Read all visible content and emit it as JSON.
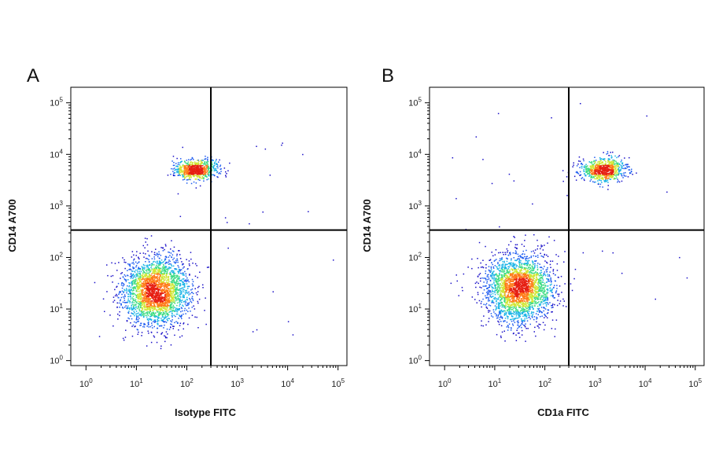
{
  "chart_data": [
    {
      "type": "scatter",
      "panel_label": "A",
      "xlabel": "Isotype FITC",
      "ylabel": "CD14 A700",
      "x_scale": "log",
      "y_scale": "log",
      "xlim": [
        0.5,
        150000
      ],
      "ylim": [
        0.8,
        200000
      ],
      "x_ticks": [
        {
          "base": "10",
          "exp": "0",
          "value": 1
        },
        {
          "base": "10",
          "exp": "1",
          "value": 10
        },
        {
          "base": "10",
          "exp": "2",
          "value": 100
        },
        {
          "base": "10",
          "exp": "3",
          "value": 1000
        },
        {
          "base": "10",
          "exp": "4",
          "value": 10000
        },
        {
          "base": "10",
          "exp": "5",
          "value": 100000
        }
      ],
      "y_ticks": [
        {
          "base": "10",
          "exp": "0",
          "value": 1
        },
        {
          "base": "10",
          "exp": "1",
          "value": 10
        },
        {
          "base": "10",
          "exp": "2",
          "value": 100
        },
        {
          "base": "10",
          "exp": "3",
          "value": 1000
        },
        {
          "base": "10",
          "exp": "4",
          "value": 10000
        },
        {
          "base": "10",
          "exp": "5",
          "value": 100000
        }
      ],
      "quadrant_gates": {
        "x": 300,
        "y": 340
      },
      "populations": [
        {
          "center": [
            25,
            22
          ],
          "spread": [
            0.33,
            0.33
          ],
          "weight": 0.78
        },
        {
          "center": [
            150,
            5000
          ],
          "spread": [
            0.22,
            0.09
          ],
          "weight": 0.22
        }
      ],
      "color_scale": [
        "#1a10c8",
        "#1e5cf0",
        "#19b4e6",
        "#3cdc82",
        "#cfe632",
        "#ff7a18",
        "#e61e12"
      ]
    },
    {
      "type": "scatter",
      "panel_label": "B",
      "xlabel": "CD1a FITC",
      "ylabel": "CD14 A700",
      "x_scale": "log",
      "y_scale": "log",
      "xlim": [
        0.5,
        150000
      ],
      "ylim": [
        0.8,
        200000
      ],
      "x_ticks": [
        {
          "base": "10",
          "exp": "0",
          "value": 1
        },
        {
          "base": "10",
          "exp": "1",
          "value": 10
        },
        {
          "base": "10",
          "exp": "2",
          "value": 100
        },
        {
          "base": "10",
          "exp": "3",
          "value": 1000
        },
        {
          "base": "10",
          "exp": "4",
          "value": 10000
        },
        {
          "base": "10",
          "exp": "5",
          "value": 100000
        }
      ],
      "y_ticks": [
        {
          "base": "10",
          "exp": "0",
          "value": 1
        },
        {
          "base": "10",
          "exp": "1",
          "value": 10
        },
        {
          "base": "10",
          "exp": "2",
          "value": 100
        },
        {
          "base": "10",
          "exp": "3",
          "value": 1000
        },
        {
          "base": "10",
          "exp": "4",
          "value": 10000
        },
        {
          "base": "10",
          "exp": "5",
          "value": 100000
        }
      ],
      "quadrant_gates": {
        "x": 300,
        "y": 340
      },
      "populations": [
        {
          "center": [
            30,
            25
          ],
          "spread": [
            0.33,
            0.33
          ],
          "weight": 0.76
        },
        {
          "center": [
            1500,
            5000
          ],
          "spread": [
            0.22,
            0.11
          ],
          "weight": 0.24
        }
      ],
      "color_scale": [
        "#1a10c8",
        "#1e5cf0",
        "#19b4e6",
        "#3cdc82",
        "#cfe632",
        "#ff7a18",
        "#e61e12"
      ]
    }
  ]
}
